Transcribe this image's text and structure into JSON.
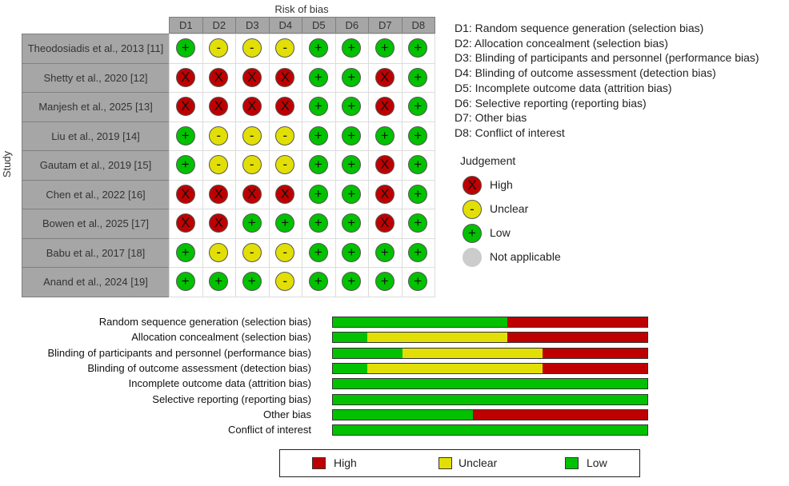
{
  "chart_data": {
    "type": "table",
    "title": "Risk of bias",
    "ylabel": "Study",
    "domains": [
      "D1",
      "D2",
      "D3",
      "D4",
      "D5",
      "D6",
      "D7",
      "D8"
    ],
    "domain_descriptions": [
      "D1: Random sequence generation (selection bias)",
      "D2: Allocation concealment (selection bias)",
      "D3: Blinding of participants and personnel (performance bias)",
      "D4: Blinding of outcome assessment (detection bias)",
      "D5: Incomplete outcome data (attrition bias)",
      "D6: Selective reporting (reporting bias)",
      "D7: Other bias",
      "D8: Conflict of interest"
    ],
    "studies": [
      {
        "name": "Theodosiadis et al., 2013 [11]",
        "judgements": [
          "Low",
          "Unclear",
          "Unclear",
          "Unclear",
          "Low",
          "Low",
          "Low",
          "Low"
        ]
      },
      {
        "name": "Shetty et al., 2020 [12]",
        "judgements": [
          "High",
          "High",
          "High",
          "High",
          "Low",
          "Low",
          "High",
          "Low"
        ]
      },
      {
        "name": "Manjesh et al., 2025 [13]",
        "judgements": [
          "High",
          "High",
          "High",
          "High",
          "Low",
          "Low",
          "High",
          "Low"
        ]
      },
      {
        "name": "Liu et al., 2019 [14]",
        "judgements": [
          "Low",
          "Unclear",
          "Unclear",
          "Unclear",
          "Low",
          "Low",
          "Low",
          "Low"
        ]
      },
      {
        "name": "Gautam et al., 2019 [15]",
        "judgements": [
          "Low",
          "Unclear",
          "Unclear",
          "Unclear",
          "Low",
          "Low",
          "High",
          "Low"
        ]
      },
      {
        "name": "Chen et al., 2022 [16]",
        "judgements": [
          "High",
          "High",
          "High",
          "High",
          "Low",
          "Low",
          "High",
          "Low"
        ]
      },
      {
        "name": "Bowen et al., 2025 [17]",
        "judgements": [
          "High",
          "High",
          "Low",
          "Low",
          "Low",
          "Low",
          "High",
          "Low"
        ]
      },
      {
        "name": "Babu et al., 2017 [18]",
        "judgements": [
          "Low",
          "Unclear",
          "Unclear",
          "Unclear",
          "Low",
          "Low",
          "Low",
          "Low"
        ]
      },
      {
        "name": "Anand et al., 2024 [19]",
        "judgements": [
          "Low",
          "Low",
          "Low",
          "Unclear",
          "Low",
          "Low",
          "Low",
          "Low"
        ]
      }
    ],
    "judgement_legend": {
      "title": "Judgement",
      "items": [
        {
          "label": "High",
          "symbol": "X",
          "color": "#BF0000"
        },
        {
          "label": "Unclear",
          "symbol": "-",
          "color": "#E2DF07"
        },
        {
          "label": "Low",
          "symbol": "+",
          "color": "#02C100"
        },
        {
          "label": "Not applicable",
          "symbol": "",
          "color": "#CCCCCC"
        }
      ]
    },
    "summary": {
      "type": "bar",
      "categories": [
        "Random sequence generation (selection bias)",
        "Allocation concealment (selection bias)",
        "Blinding of participants and personnel (performance bias)",
        "Blinding of outcome assessment (detection bias)",
        "Incomplete outcome data (attrition bias)",
        "Selective reporting (reporting bias)",
        "Other bias",
        "Conflict of interest"
      ],
      "series": [
        {
          "name": "Low",
          "color": "#02C100",
          "values": [
            5,
            1,
            2,
            1,
            9,
            9,
            4,
            9
          ]
        },
        {
          "name": "Unclear",
          "color": "#E2DF07",
          "values": [
            0,
            4,
            4,
            5,
            0,
            0,
            0,
            0
          ]
        },
        {
          "name": "High",
          "color": "#BF0000",
          "values": [
            4,
            4,
            3,
            3,
            0,
            0,
            5,
            0
          ]
        }
      ],
      "legend": [
        {
          "label": "High",
          "color": "#BF0000"
        },
        {
          "label": "Unclear",
          "color": "#E2DF07"
        },
        {
          "label": "Low",
          "color": "#02C100"
        }
      ],
      "legend_placement": "bottom"
    }
  }
}
